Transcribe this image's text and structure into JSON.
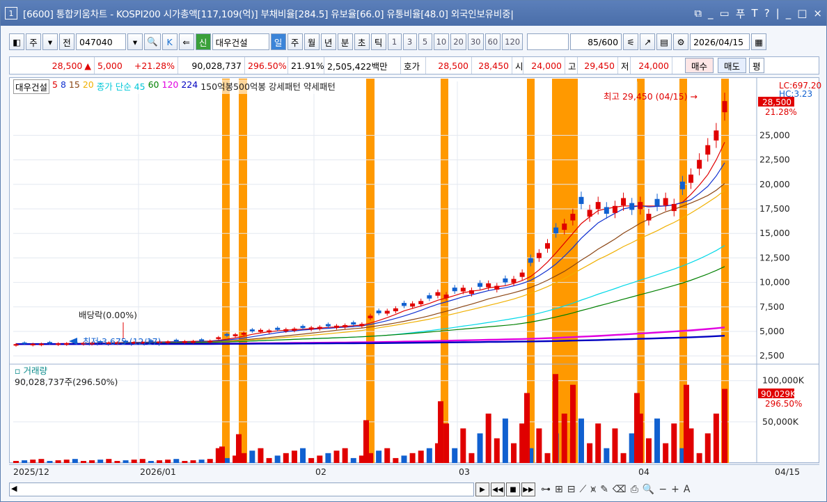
{
  "title": {
    "window_no": "1",
    "text": "[6600] 통합키움차트 - KOSPI200 시가총액[117,109(억)] 부채비율[284.5] 유보율[66.0] 유통비율[48.0] 외국인보유비중|",
    "controls": [
      "⧉",
      "_",
      "▭",
      "푸",
      "T",
      "?",
      "|",
      "_",
      "□",
      "×"
    ]
  },
  "toolbar": {
    "left_buttons": [
      "◧",
      "주",
      "▾",
      "전"
    ],
    "code": "047040",
    "code_arrow": "▾",
    "search": "🔍",
    "k_button": "K",
    "pin": "⇐",
    "new_badge": "신",
    "stock_name": "대우건설",
    "periods": [
      "일",
      "주",
      "월",
      "년",
      "분",
      "초",
      "틱"
    ],
    "active_period": "일",
    "intervals": [
      "1",
      "3",
      "5",
      "10",
      "20",
      "30",
      "60",
      "120"
    ],
    "count": "85/600",
    "date": "2026/04/15"
  },
  "quote": {
    "price": "28,500",
    "up_arrow": "▲",
    "change": "5,000",
    "change_pct": "+21.28%",
    "volume": "90,028,737",
    "vol_ratio": "296.50%",
    "turnover": "21.91%",
    "amount": "2,505,422백만",
    "bid_label": "호가",
    "ask": "28,500",
    "bid": "28,450",
    "open_label": "시",
    "open": "24,000",
    "high_label": "고",
    "high": "29,450",
    "low_label": "저",
    "low": "24,000",
    "buy": "매수",
    "sell": "매도",
    "eval": "평"
  },
  "price_pane": {
    "legend": [
      {
        "text": "대우건설",
        "color": "#000000"
      },
      {
        "text": "5",
        "color": "#e00000"
      },
      {
        "text": "8",
        "color": "#1030d0"
      },
      {
        "text": "15",
        "color": "#8b4513"
      },
      {
        "text": "20",
        "color": "#f0b000"
      },
      {
        "text": "종가 단순 45",
        "color": "#00c8d8"
      },
      {
        "text": "60",
        "color": "#008000"
      },
      {
        "text": "120",
        "color": "#e000e0"
      },
      {
        "text": "224",
        "color": "#0000c0"
      },
      {
        "text": "150억봉500억봉 강세패턴  약세패턴",
        "color": "#222222"
      }
    ],
    "y_ticks": [
      "25,000",
      "22,500",
      "20,000",
      "17,500",
      "15,000",
      "12,500",
      "10,000",
      "7,500",
      "5,000",
      "2,500"
    ],
    "lc": "LC:697.20",
    "hc": "HC:3.23",
    "cur_label": "28,500",
    "cur_pct": "21.28%",
    "max_annotation": "최고 29,450 (04/15) →",
    "min_annotation": "최저 3,675 (12/17)",
    "dividend_annotation": "배당락(0.00%)"
  },
  "volume_pane": {
    "title": "거래량",
    "value": "90,028,737주(296.50%)",
    "y_ticks": [
      "100,000K",
      "50,000K"
    ],
    "cur_label": "90,029K",
    "cur_pct": "296.50%"
  },
  "x_axis": {
    "labels": [
      "2025/12",
      "2026/01",
      "02",
      "03",
      "04"
    ],
    "end_label": "04/15"
  },
  "colors": {
    "up": "#e00000",
    "down": "#1060d0",
    "highlight": "#ff9900"
  }
}
